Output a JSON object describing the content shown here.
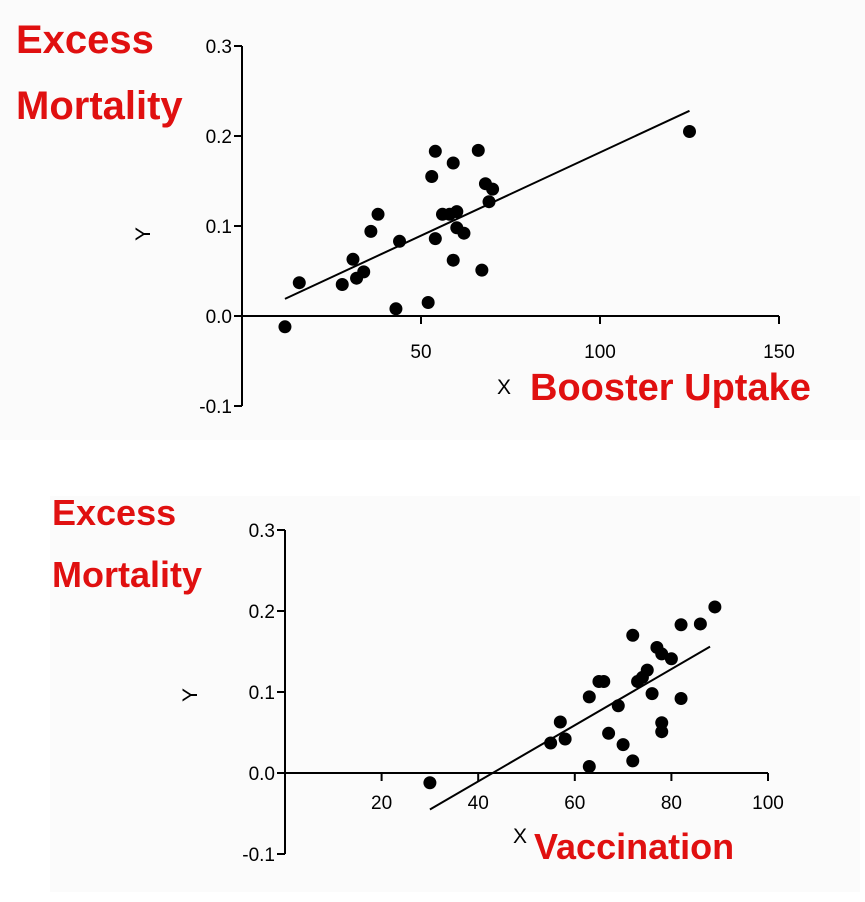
{
  "chart_data": [
    {
      "type": "scatter",
      "ylabel_letter": "Y",
      "xlabel_letter": "X",
      "annotation_y": [
        "Excess",
        "Mortality"
      ],
      "annotation_x": "Booster Uptake",
      "xlim": [
        0,
        150
      ],
      "ylim": [
        -0.1,
        0.3
      ],
      "xticks": [
        50,
        100,
        150
      ],
      "yticks": [
        -0.1,
        0.0,
        0.1,
        0.2,
        0.3
      ],
      "ytick_labels": [
        "-0.1",
        "0.0",
        "0.1",
        "0.2",
        "0.3"
      ],
      "points": [
        [
          12,
          -0.012
        ],
        [
          16,
          0.037
        ],
        [
          28,
          0.035
        ],
        [
          31,
          0.063
        ],
        [
          32,
          0.042
        ],
        [
          34,
          0.049
        ],
        [
          36,
          0.094
        ],
        [
          38,
          0.113
        ],
        [
          43,
          0.008
        ],
        [
          44,
          0.083
        ],
        [
          52,
          0.015
        ],
        [
          53,
          0.155
        ],
        [
          54,
          0.086
        ],
        [
          54,
          0.183
        ],
        [
          56,
          0.113
        ],
        [
          58,
          0.113
        ],
        [
          59,
          0.17
        ],
        [
          59,
          0.062
        ],
        [
          60,
          0.116
        ],
        [
          60,
          0.098
        ],
        [
          62,
          0.092
        ],
        [
          66,
          0.184
        ],
        [
          67,
          0.051
        ],
        [
          68,
          0.147
        ],
        [
          69,
          0.127
        ],
        [
          70,
          0.141
        ],
        [
          125,
          0.205
        ]
      ],
      "fit_line": [
        [
          12,
          0.019
        ],
        [
          125,
          0.228
        ]
      ],
      "colors": {
        "points": "#000000",
        "annotation": "#e01010"
      }
    },
    {
      "type": "scatter",
      "ylabel_letter": "Y",
      "xlabel_letter": "X",
      "annotation_y": [
        "Excess",
        "Mortality"
      ],
      "annotation_x": "Vaccination",
      "xlim": [
        0,
        100
      ],
      "ylim": [
        -0.1,
        0.3
      ],
      "xticks": [
        20,
        40,
        60,
        80,
        100
      ],
      "yticks": [
        -0.1,
        0.0,
        0.1,
        0.2,
        0.3
      ],
      "ytick_labels": [
        "-0.1",
        "0.0",
        "0.1",
        "0.2",
        "0.3"
      ],
      "points": [
        [
          30,
          -0.012
        ],
        [
          55,
          0.037
        ],
        [
          57,
          0.063
        ],
        [
          58,
          0.042
        ],
        [
          63,
          0.094
        ],
        [
          63,
          0.008
        ],
        [
          65,
          0.113
        ],
        [
          66,
          0.113
        ],
        [
          67,
          0.049
        ],
        [
          69,
          0.083
        ],
        [
          70,
          0.035
        ],
        [
          72,
          0.17
        ],
        [
          72,
          0.015
        ],
        [
          73,
          0.113
        ],
        [
          74,
          0.118
        ],
        [
          75,
          0.127
        ],
        [
          76,
          0.098
        ],
        [
          77,
          0.155
        ],
        [
          78,
          0.147
        ],
        [
          78,
          0.062
        ],
        [
          78,
          0.051
        ],
        [
          80,
          0.141
        ],
        [
          82,
          0.183
        ],
        [
          82,
          0.092
        ],
        [
          86,
          0.184
        ],
        [
          89,
          0.205
        ]
      ],
      "fit_line": [
        [
          30,
          -0.045
        ],
        [
          88,
          0.156
        ]
      ],
      "colors": {
        "points": "#000000",
        "annotation": "#e01010"
      }
    }
  ]
}
